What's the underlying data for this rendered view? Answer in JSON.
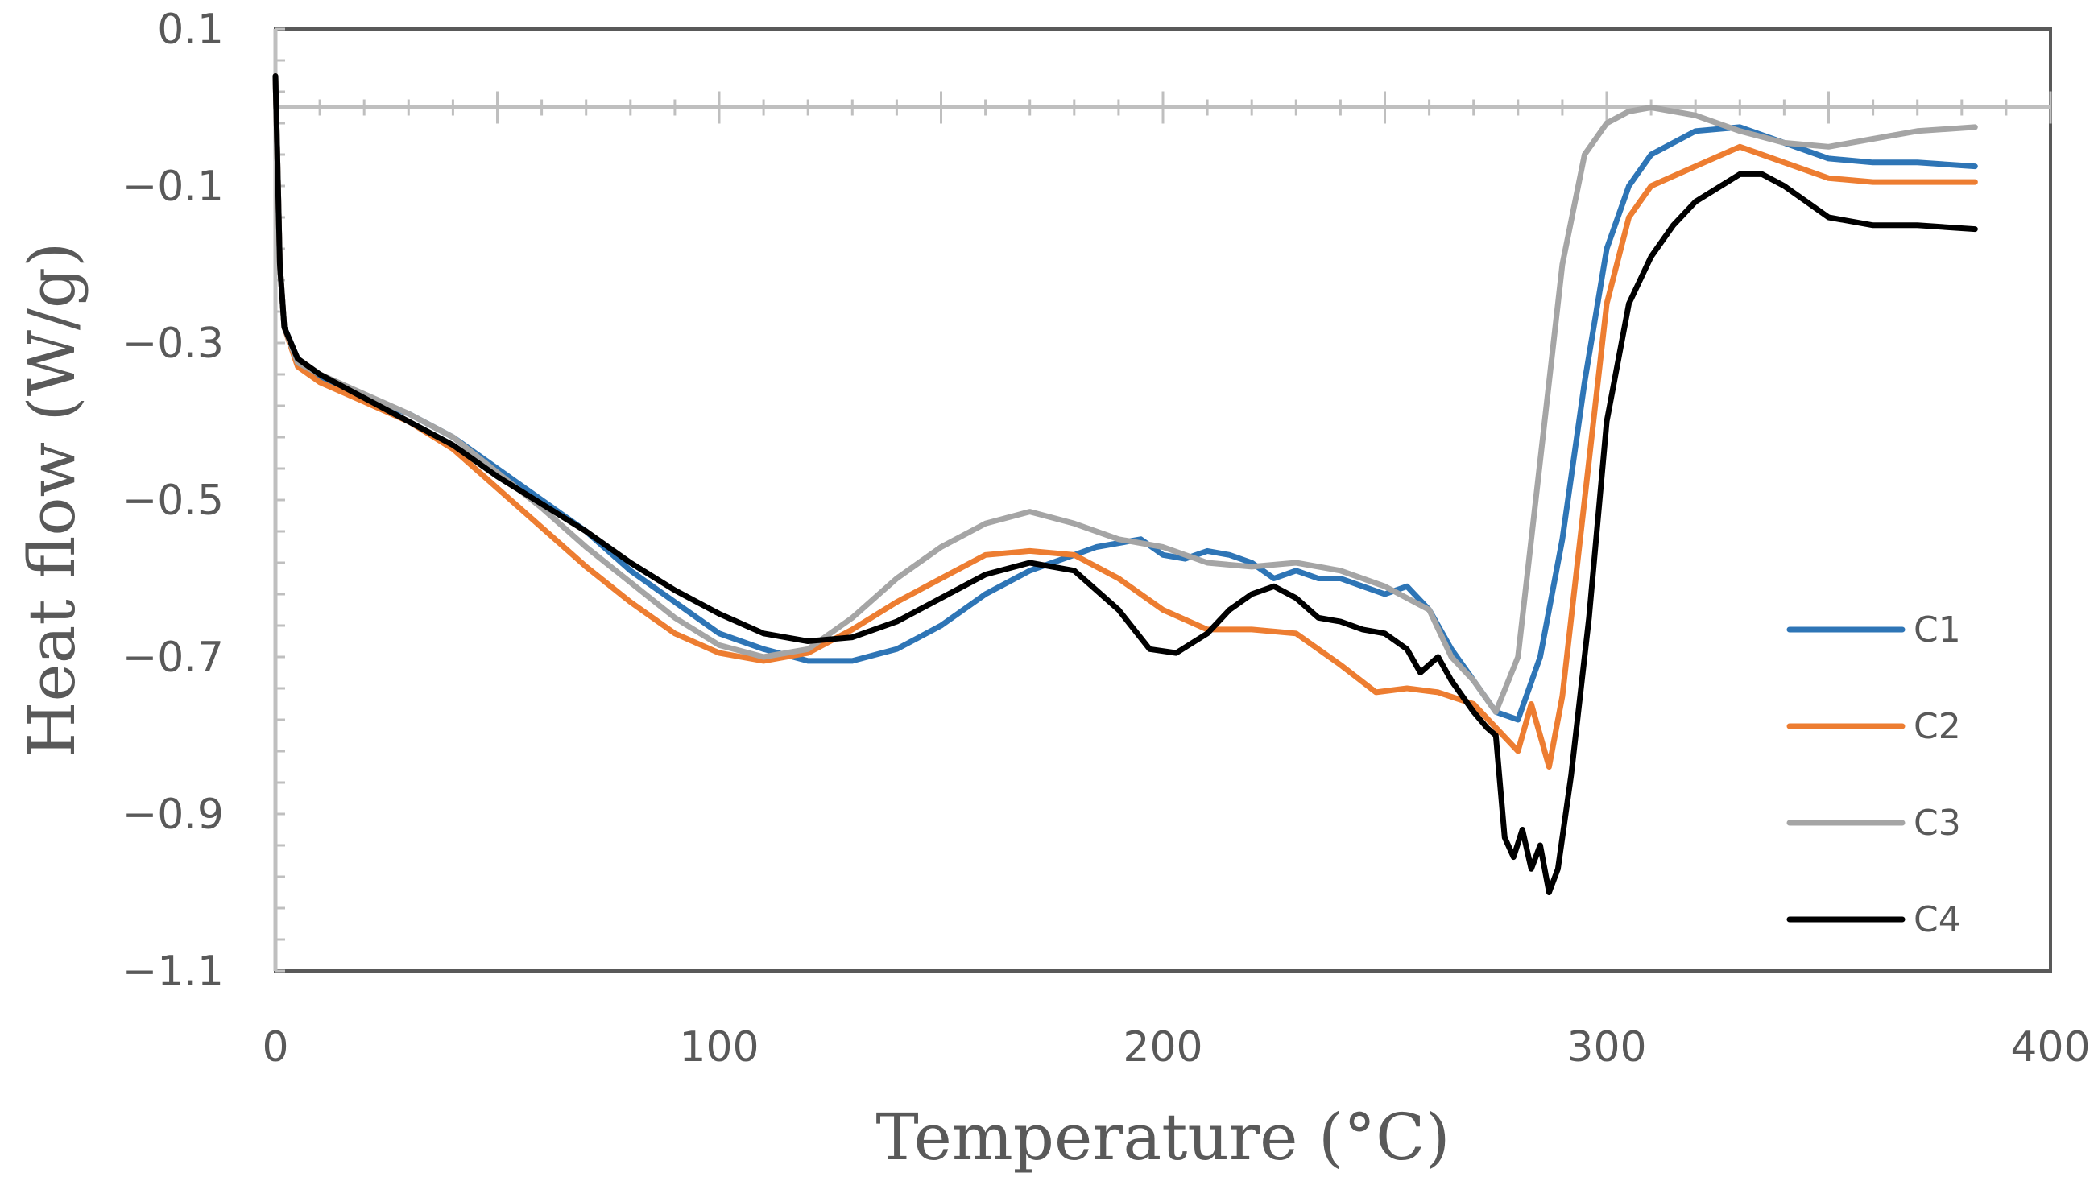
{
  "chart_data": {
    "type": "line",
    "title": "",
    "xlabel": "Temperature (°C)",
    "ylabel": "Heat flow (W/g)",
    "xlim": [
      0,
      400
    ],
    "ylim": [
      -1.1,
      0.1
    ],
    "x_ticks": [
      0,
      100,
      200,
      300,
      400
    ],
    "y_ticks": [
      0.1,
      -0.1,
      -0.3,
      -0.5,
      -0.7,
      -0.9,
      -1.1
    ],
    "x_tick_labels": [
      "0",
      "100",
      "200",
      "300",
      "400"
    ],
    "y_tick_labels": [
      "0.1",
      "−0.1",
      "−0.3",
      "−0.5",
      "−0.7",
      "−0.9",
      "−1.1"
    ],
    "legend_position": "right",
    "series": [
      {
        "name": "C1",
        "color": "#2E75B6",
        "points": [
          [
            0,
            0.04
          ],
          [
            1,
            -0.2
          ],
          [
            2,
            -0.28
          ],
          [
            5,
            -0.32
          ],
          [
            10,
            -0.345
          ],
          [
            20,
            -0.37
          ],
          [
            30,
            -0.39
          ],
          [
            40,
            -0.42
          ],
          [
            50,
            -0.46
          ],
          [
            60,
            -0.5
          ],
          [
            70,
            -0.54
          ],
          [
            80,
            -0.59
          ],
          [
            90,
            -0.63
          ],
          [
            100,
            -0.67
          ],
          [
            110,
            -0.69
          ],
          [
            120,
            -0.705
          ],
          [
            130,
            -0.705
          ],
          [
            140,
            -0.69
          ],
          [
            150,
            -0.66
          ],
          [
            160,
            -0.62
          ],
          [
            170,
            -0.59
          ],
          [
            180,
            -0.57
          ],
          [
            185,
            -0.56
          ],
          [
            195,
            -0.55
          ],
          [
            200,
            -0.57
          ],
          [
            205,
            -0.575
          ],
          [
            210,
            -0.565
          ],
          [
            215,
            -0.57
          ],
          [
            220,
            -0.58
          ],
          [
            225,
            -0.6
          ],
          [
            230,
            -0.59
          ],
          [
            235,
            -0.6
          ],
          [
            240,
            -0.6
          ],
          [
            245,
            -0.61
          ],
          [
            250,
            -0.62
          ],
          [
            255,
            -0.61
          ],
          [
            260,
            -0.64
          ],
          [
            265,
            -0.69
          ],
          [
            270,
            -0.73
          ],
          [
            275,
            -0.77
          ],
          [
            280,
            -0.78
          ],
          [
            285,
            -0.7
          ],
          [
            290,
            -0.55
          ],
          [
            295,
            -0.35
          ],
          [
            300,
            -0.18
          ],
          [
            305,
            -0.1
          ],
          [
            310,
            -0.06
          ],
          [
            320,
            -0.03
          ],
          [
            330,
            -0.025
          ],
          [
            340,
            -0.045
          ],
          [
            350,
            -0.065
          ],
          [
            360,
            -0.07
          ],
          [
            370,
            -0.07
          ],
          [
            383,
            -0.075
          ]
        ]
      },
      {
        "name": "C2",
        "color": "#ED7D31",
        "points": [
          [
            0,
            0.04
          ],
          [
            1,
            -0.2
          ],
          [
            2,
            -0.28
          ],
          [
            5,
            -0.33
          ],
          [
            10,
            -0.35
          ],
          [
            20,
            -0.375
          ],
          [
            30,
            -0.4
          ],
          [
            40,
            -0.435
          ],
          [
            50,
            -0.485
          ],
          [
            60,
            -0.535
          ],
          [
            70,
            -0.585
          ],
          [
            80,
            -0.63
          ],
          [
            90,
            -0.67
          ],
          [
            100,
            -0.695
          ],
          [
            110,
            -0.705
          ],
          [
            120,
            -0.695
          ],
          [
            130,
            -0.665
          ],
          [
            140,
            -0.63
          ],
          [
            150,
            -0.6
          ],
          [
            160,
            -0.57
          ],
          [
            170,
            -0.565
          ],
          [
            180,
            -0.57
          ],
          [
            190,
            -0.6
          ],
          [
            200,
            -0.64
          ],
          [
            210,
            -0.665
          ],
          [
            220,
            -0.665
          ],
          [
            230,
            -0.67
          ],
          [
            240,
            -0.71
          ],
          [
            248,
            -0.745
          ],
          [
            255,
            -0.74
          ],
          [
            262,
            -0.745
          ],
          [
            270,
            -0.76
          ],
          [
            275,
            -0.79
          ],
          [
            280,
            -0.82
          ],
          [
            283,
            -0.76
          ],
          [
            285,
            -0.8
          ],
          [
            287,
            -0.84
          ],
          [
            290,
            -0.75
          ],
          [
            295,
            -0.5
          ],
          [
            300,
            -0.25
          ],
          [
            305,
            -0.14
          ],
          [
            310,
            -0.1
          ],
          [
            320,
            -0.075
          ],
          [
            330,
            -0.05
          ],
          [
            340,
            -0.07
          ],
          [
            350,
            -0.09
          ],
          [
            360,
            -0.095
          ],
          [
            383,
            -0.095
          ]
        ]
      },
      {
        "name": "C3",
        "color": "#A5A5A5",
        "points": [
          [
            0,
            0.04
          ],
          [
            1,
            -0.2
          ],
          [
            2,
            -0.28
          ],
          [
            5,
            -0.325
          ],
          [
            10,
            -0.34
          ],
          [
            20,
            -0.365
          ],
          [
            30,
            -0.39
          ],
          [
            40,
            -0.42
          ],
          [
            50,
            -0.465
          ],
          [
            60,
            -0.51
          ],
          [
            70,
            -0.56
          ],
          [
            80,
            -0.605
          ],
          [
            90,
            -0.65
          ],
          [
            100,
            -0.685
          ],
          [
            110,
            -0.7
          ],
          [
            120,
            -0.69
          ],
          [
            130,
            -0.65
          ],
          [
            140,
            -0.6
          ],
          [
            150,
            -0.56
          ],
          [
            160,
            -0.53
          ],
          [
            170,
            -0.515
          ],
          [
            180,
            -0.53
          ],
          [
            190,
            -0.55
          ],
          [
            200,
            -0.56
          ],
          [
            210,
            -0.58
          ],
          [
            220,
            -0.585
          ],
          [
            230,
            -0.58
          ],
          [
            240,
            -0.59
          ],
          [
            250,
            -0.61
          ],
          [
            260,
            -0.64
          ],
          [
            265,
            -0.7
          ],
          [
            270,
            -0.73
          ],
          [
            275,
            -0.77
          ],
          [
            280,
            -0.7
          ],
          [
            285,
            -0.45
          ],
          [
            290,
            -0.2
          ],
          [
            295,
            -0.06
          ],
          [
            300,
            -0.02
          ],
          [
            305,
            -0.005
          ],
          [
            310,
            0.0
          ],
          [
            320,
            -0.01
          ],
          [
            330,
            -0.03
          ],
          [
            340,
            -0.045
          ],
          [
            350,
            -0.05
          ],
          [
            360,
            -0.04
          ],
          [
            370,
            -0.03
          ],
          [
            383,
            -0.025
          ]
        ]
      },
      {
        "name": "C4",
        "color": "#000000",
        "points": [
          [
            0,
            0.04
          ],
          [
            1,
            -0.2
          ],
          [
            2,
            -0.28
          ],
          [
            5,
            -0.32
          ],
          [
            10,
            -0.34
          ],
          [
            20,
            -0.37
          ],
          [
            30,
            -0.4
          ],
          [
            40,
            -0.43
          ],
          [
            50,
            -0.47
          ],
          [
            60,
            -0.505
          ],
          [
            70,
            -0.54
          ],
          [
            80,
            -0.58
          ],
          [
            90,
            -0.615
          ],
          [
            100,
            -0.645
          ],
          [
            110,
            -0.67
          ],
          [
            120,
            -0.68
          ],
          [
            130,
            -0.675
          ],
          [
            140,
            -0.655
          ],
          [
            150,
            -0.625
          ],
          [
            160,
            -0.595
          ],
          [
            170,
            -0.58
          ],
          [
            180,
            -0.59
          ],
          [
            190,
            -0.64
          ],
          [
            197,
            -0.69
          ],
          [
            203,
            -0.695
          ],
          [
            210,
            -0.67
          ],
          [
            215,
            -0.64
          ],
          [
            220,
            -0.62
          ],
          [
            225,
            -0.61
          ],
          [
            230,
            -0.625
          ],
          [
            235,
            -0.65
          ],
          [
            240,
            -0.655
          ],
          [
            245,
            -0.665
          ],
          [
            250,
            -0.67
          ],
          [
            255,
            -0.69
          ],
          [
            258,
            -0.72
          ],
          [
            262,
            -0.7
          ],
          [
            265,
            -0.73
          ],
          [
            270,
            -0.77
          ],
          [
            273,
            -0.79
          ],
          [
            275,
            -0.8
          ],
          [
            277,
            -0.93
          ],
          [
            279,
            -0.955
          ],
          [
            281,
            -0.92
          ],
          [
            283,
            -0.97
          ],
          [
            285,
            -0.94
          ],
          [
            287,
            -1.0
          ],
          [
            289,
            -0.97
          ],
          [
            292,
            -0.85
          ],
          [
            296,
            -0.65
          ],
          [
            300,
            -0.4
          ],
          [
            305,
            -0.25
          ],
          [
            310,
            -0.19
          ],
          [
            315,
            -0.15
          ],
          [
            320,
            -0.12
          ],
          [
            330,
            -0.085
          ],
          [
            335,
            -0.085
          ],
          [
            340,
            -0.1
          ],
          [
            350,
            -0.14
          ],
          [
            360,
            -0.15
          ],
          [
            370,
            -0.15
          ],
          [
            383,
            -0.155
          ]
        ]
      }
    ]
  }
}
